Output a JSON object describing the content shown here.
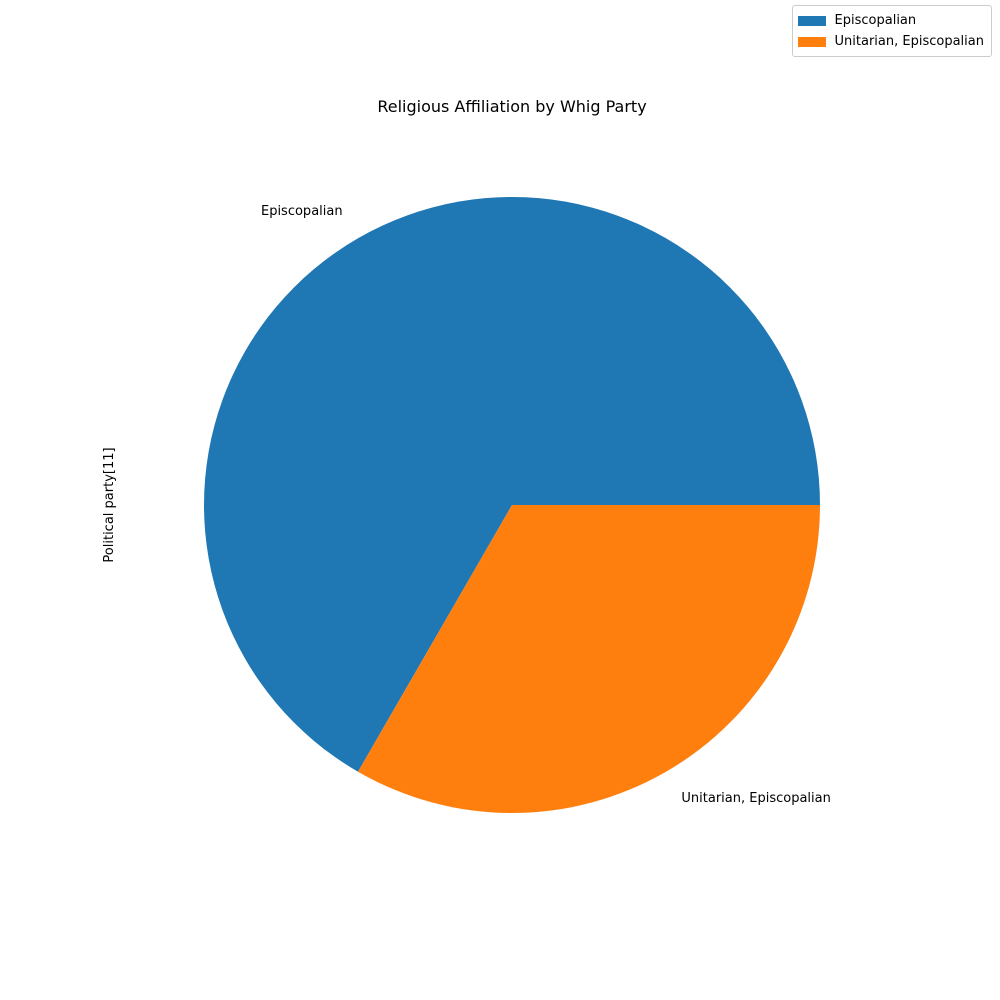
{
  "chart_data": {
    "type": "pie",
    "title": "Religious Affiliation by Whig Party",
    "ylabel": "Political party[11]",
    "labels": [
      "Episcopalian",
      "Unitarian, Episcopalian"
    ],
    "values": [
      2,
      1
    ],
    "colors": [
      "#1f77b4",
      "#ff7f0e"
    ],
    "start_angle": 0,
    "direction": "counterclockwise",
    "legend": {
      "placement": "upper-right",
      "entries": [
        "Episcopalian",
        "Unitarian, Episcopalian"
      ]
    }
  }
}
